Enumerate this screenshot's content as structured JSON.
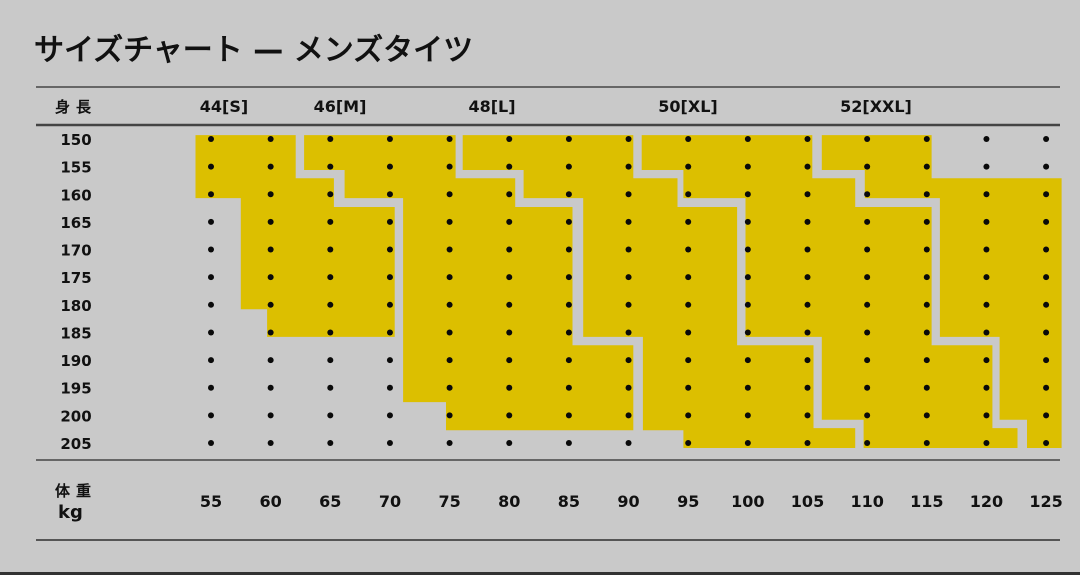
{
  "chart_data": {
    "type": "heatmap",
    "title": "サイズチャート — メンズタイツ",
    "ylabel": "身長",
    "xlabel": "体重",
    "xunit": "kg",
    "x_ticks": [
      55,
      60,
      65,
      70,
      75,
      80,
      85,
      90,
      95,
      100,
      105,
      110,
      115,
      120,
      125
    ],
    "y_ticks": [
      150,
      155,
      160,
      165,
      170,
      175,
      180,
      185,
      190,
      195,
      200,
      205
    ],
    "grid_points": true,
    "colors": {
      "region": "#dcbf00",
      "background": "#c9c9c9",
      "dot": "#0a0a0a",
      "rule": "#555555"
    },
    "sizes": [
      {
        "label": "44[S]",
        "polygon_kg_cm": [
          [
            53.7,
            149.3
          ],
          [
            62.1,
            149.3
          ],
          [
            62.1,
            157.1
          ],
          [
            65.3,
            157.1
          ],
          [
            65.3,
            162.3
          ],
          [
            70.4,
            162.3
          ],
          [
            70.4,
            185.8
          ],
          [
            59.7,
            185.8
          ],
          [
            59.7,
            180.8
          ],
          [
            57.5,
            180.8
          ],
          [
            57.5,
            160.7
          ],
          [
            53.7,
            160.7
          ]
        ]
      },
      {
        "label": "46[M]",
        "polygon_kg_cm": [
          [
            62.8,
            149.3
          ],
          [
            75.5,
            149.3
          ],
          [
            75.5,
            157.1
          ],
          [
            80.5,
            157.1
          ],
          [
            80.5,
            162.3
          ],
          [
            85.3,
            162.3
          ],
          [
            85.3,
            187.3
          ],
          [
            90.4,
            187.3
          ],
          [
            90.4,
            202.7
          ],
          [
            74.7,
            202.7
          ],
          [
            74.7,
            197.6
          ],
          [
            71.1,
            197.6
          ],
          [
            71.1,
            160.7
          ],
          [
            66.2,
            160.7
          ],
          [
            66.2,
            155.6
          ],
          [
            62.8,
            155.6
          ]
        ]
      },
      {
        "label": "48[L]",
        "polygon_kg_cm": [
          [
            76.1,
            149.3
          ],
          [
            90.4,
            149.3
          ],
          [
            90.4,
            157.1
          ],
          [
            94.1,
            157.1
          ],
          [
            94.1,
            162.3
          ],
          [
            99.1,
            162.3
          ],
          [
            99.1,
            187.3
          ],
          [
            105.5,
            187.3
          ],
          [
            105.5,
            202.3
          ],
          [
            109.0,
            202.3
          ],
          [
            109.0,
            205.9
          ],
          [
            94.6,
            205.9
          ],
          [
            94.6,
            202.7
          ],
          [
            91.2,
            202.7
          ],
          [
            91.2,
            185.8
          ],
          [
            86.2,
            185.8
          ],
          [
            86.2,
            160.7
          ],
          [
            81.2,
            160.7
          ],
          [
            81.2,
            155.6
          ],
          [
            76.1,
            155.6
          ]
        ]
      },
      {
        "label": "50[XL]",
        "polygon_kg_cm": [
          [
            91.1,
            149.3
          ],
          [
            105.4,
            149.3
          ],
          [
            105.4,
            157.1
          ],
          [
            109.0,
            157.1
          ],
          [
            109.0,
            162.3
          ],
          [
            115.4,
            162.3
          ],
          [
            115.4,
            187.3
          ],
          [
            120.5,
            187.3
          ],
          [
            120.5,
            202.3
          ],
          [
            122.6,
            202.3
          ],
          [
            122.6,
            205.9
          ],
          [
            109.7,
            205.9
          ],
          [
            109.7,
            200.8
          ],
          [
            106.2,
            200.8
          ],
          [
            106.2,
            185.8
          ],
          [
            99.8,
            185.8
          ],
          [
            99.8,
            160.7
          ],
          [
            94.6,
            160.7
          ],
          [
            94.6,
            155.6
          ],
          [
            91.1,
            155.6
          ]
        ]
      },
      {
        "label": "52[XXL]",
        "polygon_kg_cm": [
          [
            106.2,
            149.3
          ],
          [
            115.4,
            149.3
          ],
          [
            115.4,
            157.1
          ],
          [
            126.3,
            157.1
          ],
          [
            126.3,
            205.9
          ],
          [
            123.4,
            205.9
          ],
          [
            123.4,
            200.8
          ],
          [
            121.1,
            200.8
          ],
          [
            121.1,
            185.8
          ],
          [
            116.1,
            185.8
          ],
          [
            116.1,
            160.7
          ],
          [
            109.8,
            160.7
          ],
          [
            109.8,
            155.6
          ],
          [
            106.2,
            155.6
          ]
        ]
      }
    ]
  }
}
